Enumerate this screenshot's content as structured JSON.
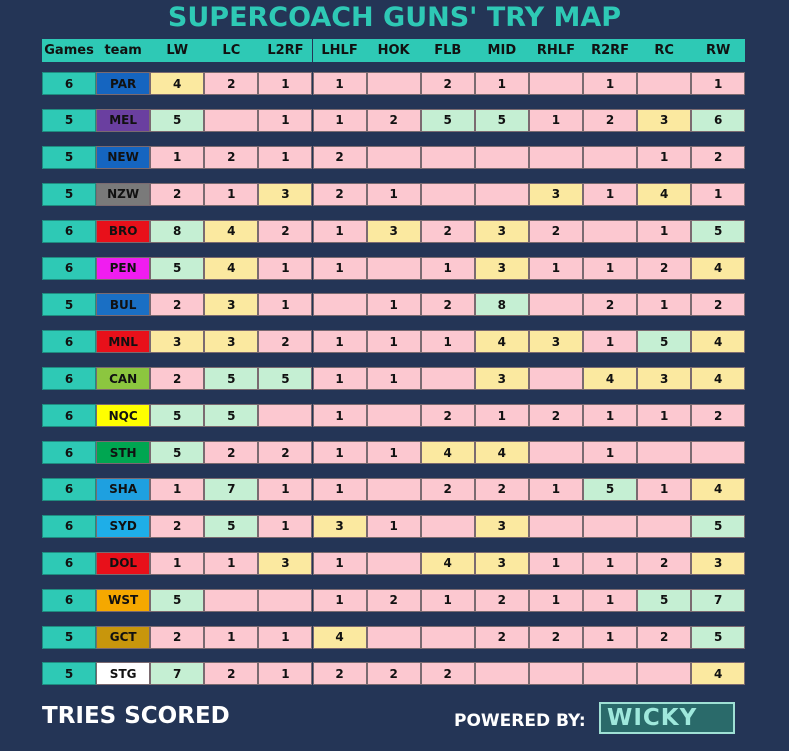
{
  "title": "SUPERCOACH GUNS' TRY MAP",
  "header": {
    "columns": [
      "Games",
      "team",
      "LW",
      "LC",
      "L2RF",
      "LHLF",
      "HOK",
      "FLB",
      "MID",
      "RHLF",
      "R2RF",
      "RC",
      "RW"
    ]
  },
  "table": {
    "rows": [
      {
        "games": 6,
        "team": "PAR",
        "team_color": "#1565c0",
        "team_text": "#111",
        "values": [
          4,
          2,
          1,
          1,
          null,
          2,
          1,
          null,
          1,
          null,
          1
        ]
      },
      {
        "games": 5,
        "team": "MEL",
        "team_color": "#6a3fa0",
        "team_text": "#111",
        "values": [
          5,
          null,
          1,
          1,
          2,
          5,
          5,
          1,
          2,
          3,
          6
        ]
      },
      {
        "games": 5,
        "team": "NEW",
        "team_color": "#1565c0",
        "team_text": "#111",
        "values": [
          1,
          2,
          1,
          2,
          null,
          null,
          null,
          null,
          null,
          1,
          2
        ]
      },
      {
        "games": 5,
        "team": "NZW",
        "team_color": "#7a7a7a",
        "team_text": "#111",
        "values": [
          2,
          1,
          3,
          2,
          1,
          null,
          null,
          3,
          1,
          4,
          1
        ]
      },
      {
        "games": 6,
        "team": "BRO",
        "team_color": "#e8101a",
        "team_text": "#111",
        "values": [
          8,
          4,
          2,
          1,
          3,
          2,
          3,
          2,
          null,
          1,
          5
        ]
      },
      {
        "games": 6,
        "team": "PEN",
        "team_color": "#f01df0",
        "team_text": "#111",
        "values": [
          5,
          4,
          1,
          1,
          null,
          1,
          3,
          1,
          1,
          2,
          4
        ]
      },
      {
        "games": 5,
        "team": "BUL",
        "team_color": "#1a6fc4",
        "team_text": "#111",
        "values": [
          2,
          3,
          1,
          null,
          1,
          2,
          8,
          null,
          2,
          1,
          2
        ]
      },
      {
        "games": 6,
        "team": "MNL",
        "team_color": "#e8101a",
        "team_text": "#111",
        "values": [
          3,
          3,
          2,
          1,
          1,
          1,
          4,
          3,
          1,
          5,
          4
        ]
      },
      {
        "games": 6,
        "team": "CAN",
        "team_color": "#8cc63f",
        "team_text": "#111",
        "values": [
          2,
          5,
          5,
          1,
          1,
          null,
          3,
          null,
          4,
          3,
          4
        ]
      },
      {
        "games": 6,
        "team": "NQC",
        "team_color": "#ffff00",
        "team_text": "#111",
        "values": [
          5,
          5,
          null,
          1,
          null,
          2,
          1,
          2,
          1,
          1,
          2
        ]
      },
      {
        "games": 6,
        "team": "STH",
        "team_color": "#00a651",
        "team_text": "#111",
        "values": [
          5,
          2,
          2,
          1,
          1,
          4,
          4,
          null,
          1,
          null,
          null
        ]
      },
      {
        "games": 6,
        "team": "SHA",
        "team_color": "#1ea0e0",
        "team_text": "#111",
        "values": [
          1,
          7,
          1,
          1,
          null,
          2,
          2,
          1,
          5,
          1,
          4
        ]
      },
      {
        "games": 6,
        "team": "SYD",
        "team_color": "#1eaee8",
        "team_text": "#111",
        "values": [
          2,
          5,
          1,
          3,
          1,
          null,
          3,
          null,
          null,
          null,
          5
        ]
      },
      {
        "games": 6,
        "team": "DOL",
        "team_color": "#e8101a",
        "team_text": "#111",
        "values": [
          1,
          1,
          3,
          1,
          null,
          4,
          3,
          1,
          1,
          2,
          3
        ]
      },
      {
        "games": 6,
        "team": "WST",
        "team_color": "#f5a800",
        "team_text": "#111",
        "values": [
          5,
          null,
          null,
          1,
          2,
          1,
          2,
          1,
          1,
          5,
          7
        ]
      },
      {
        "games": 5,
        "team": "GCT",
        "team_color": "#c8960c",
        "team_text": "#111",
        "values": [
          2,
          1,
          1,
          4,
          null,
          null,
          2,
          2,
          1,
          2,
          5
        ]
      },
      {
        "games": 5,
        "team": "STG",
        "team_color": "#ffffff",
        "team_text": "#111",
        "values": [
          7,
          2,
          1,
          2,
          2,
          2,
          null,
          null,
          null,
          null,
          4
        ]
      }
    ]
  },
  "footer": {
    "left": "TRIES SCORED",
    "powered": "POWERED BY:",
    "logo": "WICKY"
  }
}
